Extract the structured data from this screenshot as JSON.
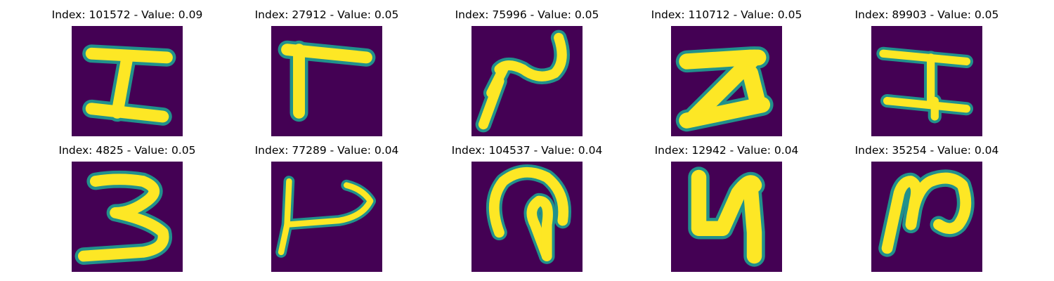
{
  "colors": {
    "background": "#440154",
    "edge": "#21918c",
    "foreground": "#fde725"
  },
  "panels": [
    {
      "title": "Index: 101572 - Value: 0.09",
      "glyph": "glyph-I-icon"
    },
    {
      "title": "Index: 27912 - Value: 0.05",
      "glyph": "glyph-Gamma-icon"
    },
    {
      "title": "Index: 75996 - Value: 0.05",
      "glyph": "glyph-sideways-S-icon"
    },
    {
      "title": "Index: 110712 - Value: 0.05",
      "glyph": "glyph-Z-icon"
    },
    {
      "title": "Index: 89903 - Value: 0.05",
      "glyph": "glyph-H-icon"
    },
    {
      "title": "Index: 4825 - Value: 0.05",
      "glyph": "glyph-3-icon"
    },
    {
      "title": "Index: 77289 - Value: 0.04",
      "glyph": "glyph-rotated-J-icon"
    },
    {
      "title": "Index: 104537 - Value: 0.04",
      "glyph": "glyph-loop-icon"
    },
    {
      "title": "Index: 12942 - Value: 0.04",
      "glyph": "glyph-4-icon"
    },
    {
      "title": "Index: 35254 - Value: 0.04",
      "glyph": "glyph-N-icon"
    }
  ]
}
